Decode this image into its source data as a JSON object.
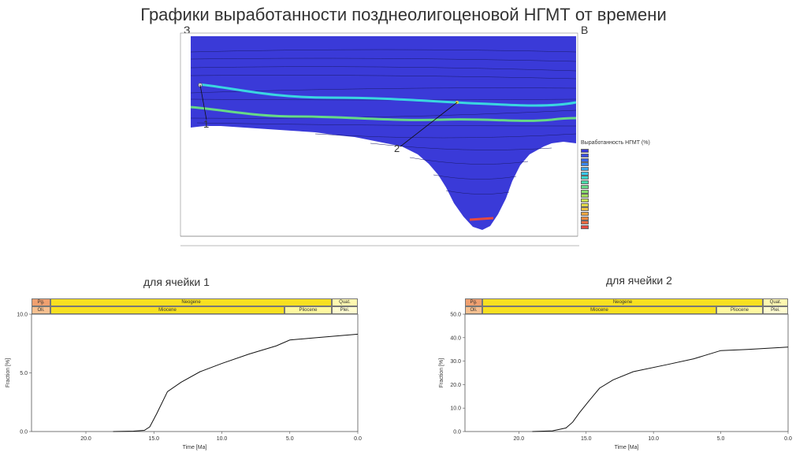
{
  "title": "Графики выработанности позднеолигоценовой НГМТ от времени",
  "section": {
    "left_label": "З",
    "right_label": "В",
    "markers": [
      {
        "label": "1"
      },
      {
        "label": "2"
      }
    ],
    "legend": {
      "title": "Выработанность НГМТ (%)",
      "colors": [
        "#3a3ad8",
        "#3a4ee0",
        "#3a66e8",
        "#3a86ee",
        "#3aa6ee",
        "#3ac6ea",
        "#3ad6cc",
        "#4ad8a8",
        "#66da86",
        "#86dc6a",
        "#a6de5a",
        "#c6de50",
        "#e2da4a",
        "#eec244",
        "#eea640",
        "#ee8a40",
        "#ea6a40",
        "#e64a40"
      ]
    }
  },
  "cells": [
    {
      "label": "для ячейки 1",
      "strat_top": [
        "Pg.",
        "Neogene",
        "Quat."
      ],
      "strat_bottom": [
        "Oli.",
        "Miocene",
        "Pliocene",
        "Plei."
      ],
      "chart_data": {
        "type": "line",
        "xlabel": "Time [Ma]",
        "ylabel": "Fraction [%]",
        "xlim": [
          24,
          0
        ],
        "ylim": [
          0,
          10
        ],
        "xticks": [
          "20.0",
          "15.0",
          "10.0",
          "5.0",
          "0.0"
        ],
        "yticks": [
          "0.0",
          "5.0",
          "10.0"
        ],
        "series": [
          {
            "x": [
              18,
              16.5,
              15.7,
              15.3,
              14.8,
              14.0,
              13.0,
              11.6,
              10.0,
              8.0,
              6.0,
              5.0,
              3.0,
              0
            ],
            "y": [
              0,
              0.03,
              0.1,
              0.4,
              1.5,
              3.4,
              4.2,
              5.1,
              5.8,
              6.6,
              7.3,
              7.8,
              8.0,
              8.3
            ]
          }
        ]
      }
    },
    {
      "label": "для ячейки 2",
      "strat_top": [
        "Pg.",
        "Neogene",
        "Quat."
      ],
      "strat_bottom": [
        "Oli.",
        "Miocene",
        "Pliocene",
        "Plei."
      ],
      "chart_data": {
        "type": "line",
        "xlabel": "Time [Ma]",
        "ylabel": "Fraction [%]",
        "xlim": [
          24,
          0
        ],
        "ylim": [
          0,
          50
        ],
        "xticks": [
          "20.0",
          "15.0",
          "10.0",
          "5.0",
          "0.0"
        ],
        "yticks": [
          "0.0",
          "10.0",
          "20.0",
          "30.0",
          "40.0",
          "50.0"
        ],
        "series": [
          {
            "x": [
              19,
              17.5,
              16.5,
              16.0,
              15.5,
              14.8,
              14.0,
              13.0,
              11.5,
              9.0,
              7.0,
              5.0,
              3.0,
              0
            ],
            "y": [
              0,
              0.3,
              1.5,
              4,
              8,
              13,
              18.5,
              22,
              25.5,
              28.5,
              31,
              34.5,
              35,
              36
            ]
          }
        ]
      }
    }
  ]
}
